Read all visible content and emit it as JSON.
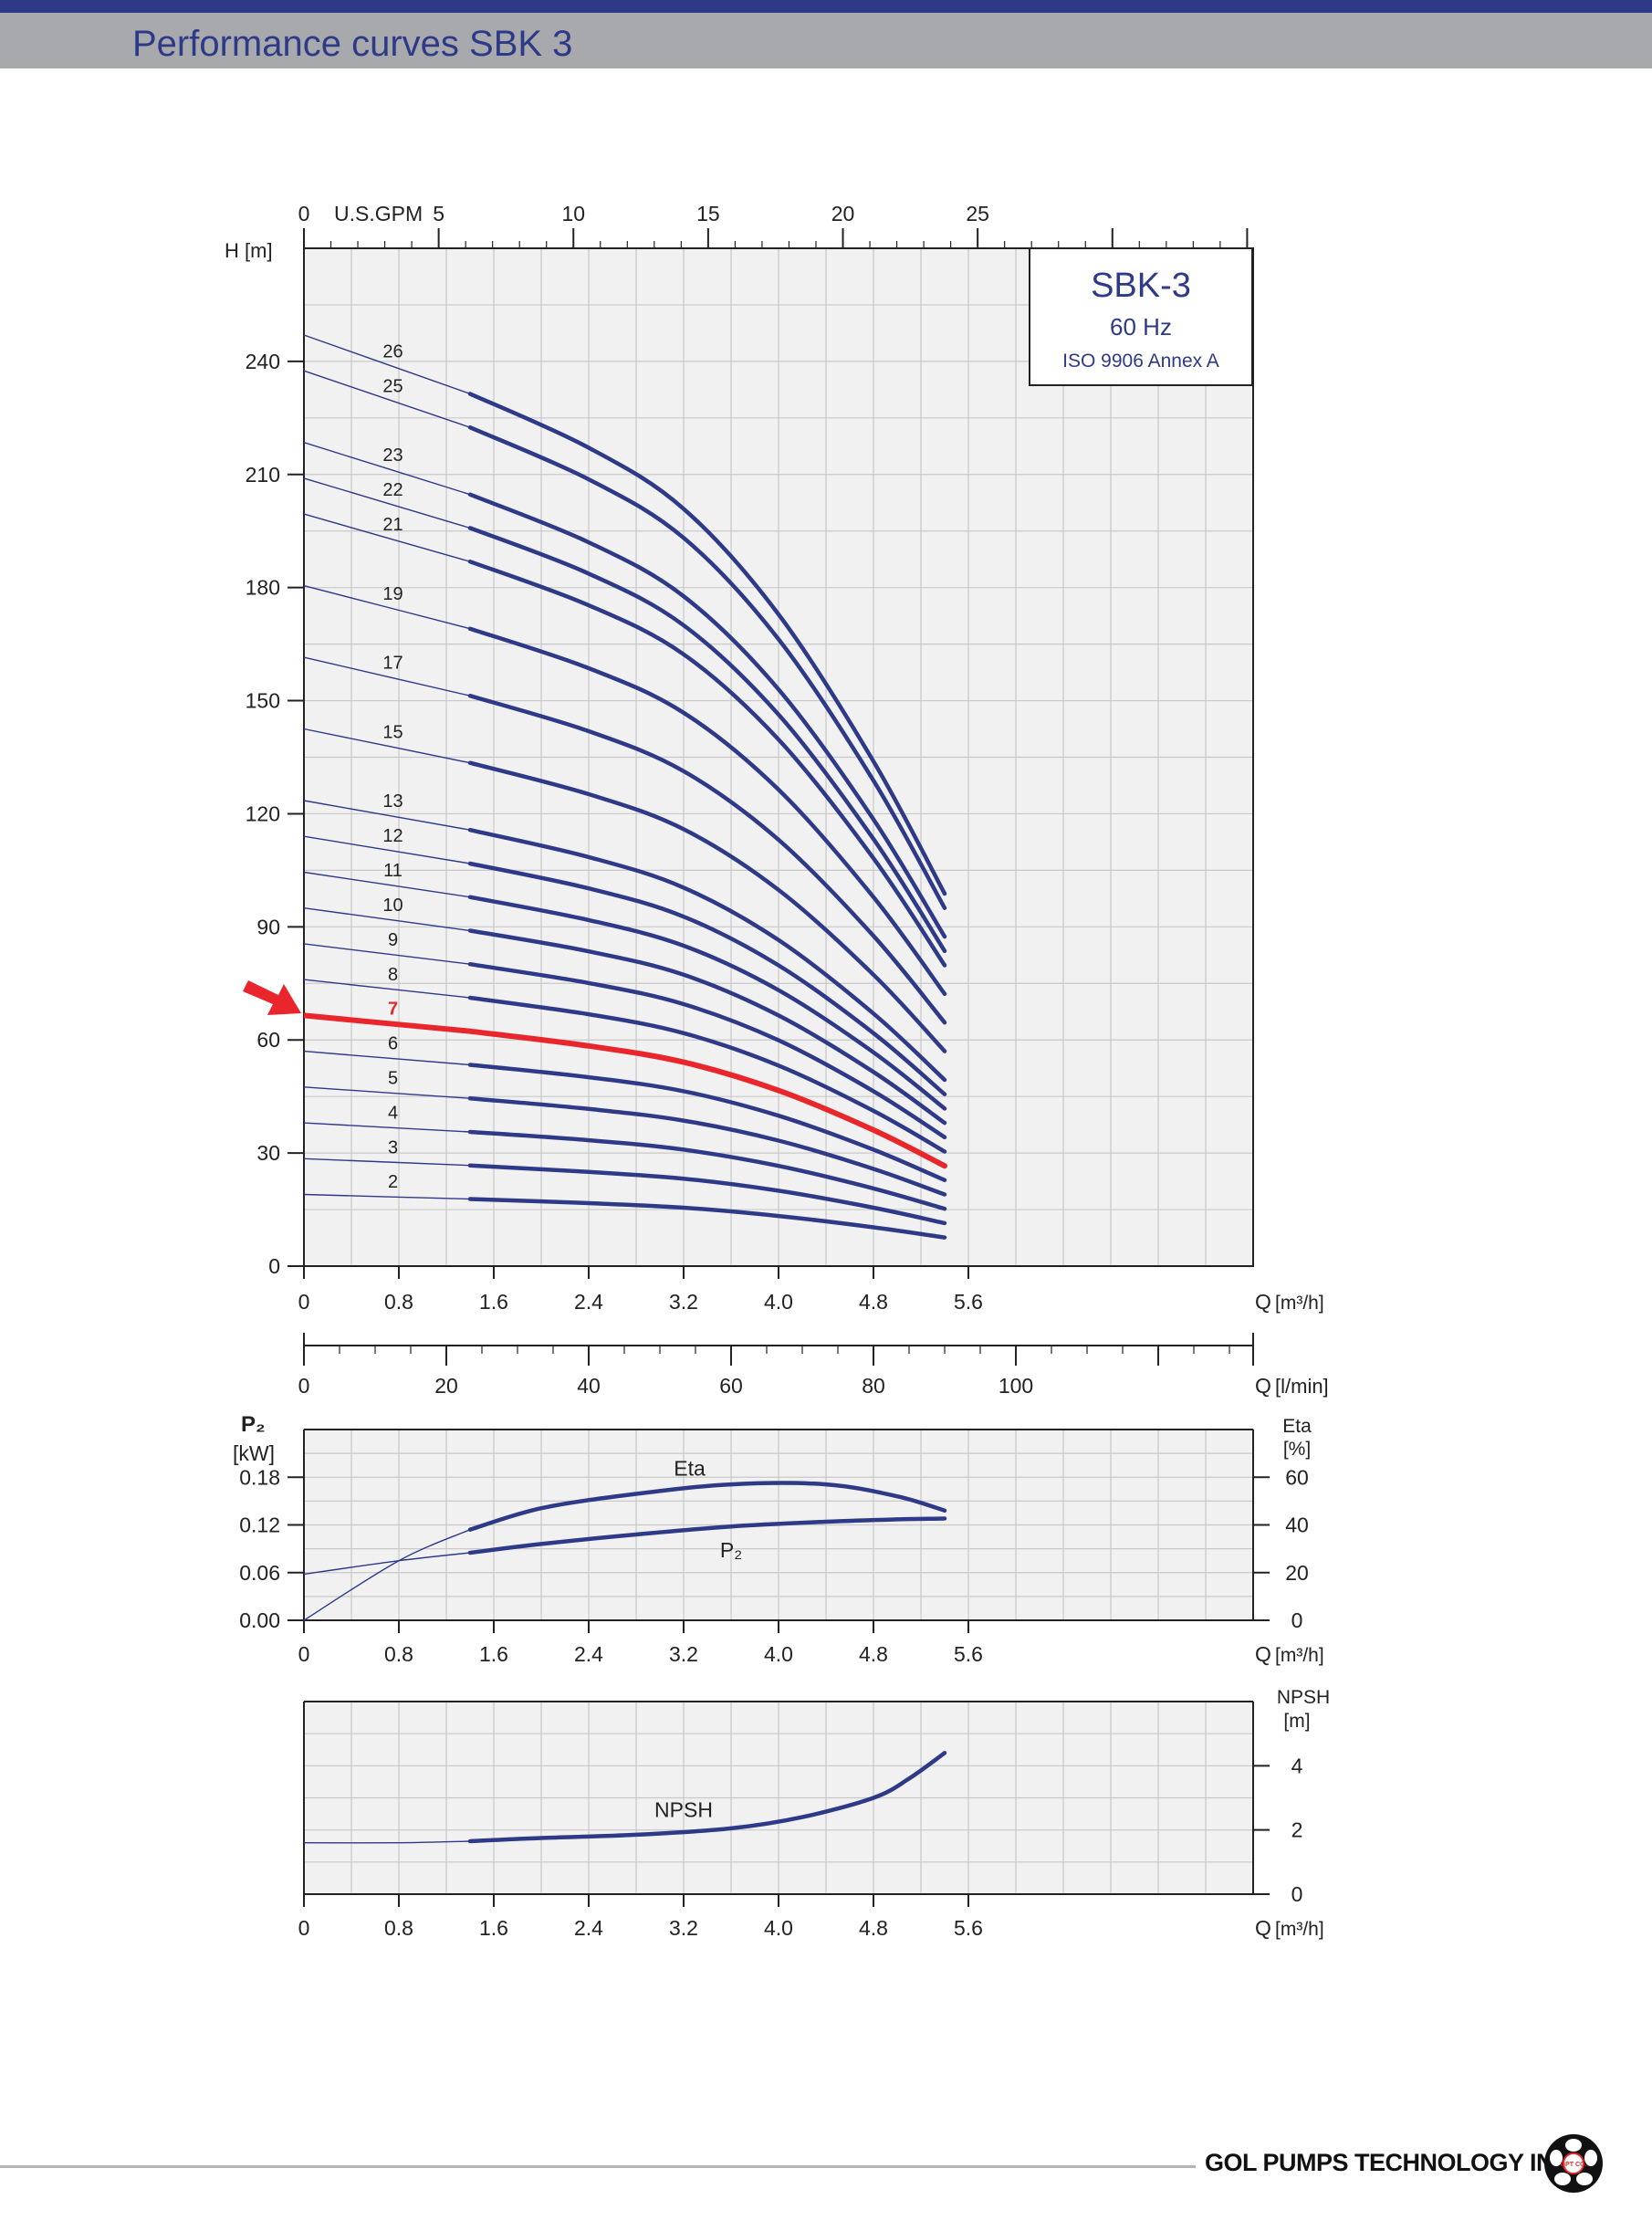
{
  "page": {
    "title": "Performance curves SBK 3",
    "company": "GOL PUMPS TECHNOLOGY INC",
    "logo_text": "GPT CO."
  },
  "colors": {
    "curve": "#2e3a87",
    "highlight": "#e8262b",
    "grid": "#c9c9c9",
    "plot_bg": "#f1f1f2",
    "header_bar": "#a7a9ac",
    "header_rule": "#2e3a87"
  },
  "legend_box": {
    "model": "SBK-3",
    "frequency": "60 Hz",
    "standard": "ISO 9906 Annex A"
  },
  "chart_data": [
    {
      "type": "line",
      "name": "head",
      "ylabel": "H [m]",
      "xlabel": "Q [m³/h]",
      "x_units_label": "Q",
      "x_units": "[m³/h]",
      "xlim": [
        0,
        8.0
      ],
      "ylim": [
        0,
        270
      ],
      "x_ticks": [
        0,
        0.8,
        1.6,
        2.4,
        3.2,
        4.0,
        4.8,
        5.6
      ],
      "y_ticks": [
        0,
        30,
        60,
        90,
        120,
        150,
        180,
        210,
        240
      ],
      "x_tick_labels": [
        "0",
        "0.8",
        "1.6",
        "2.4",
        "3.2",
        "4.0",
        "4.8",
        "5.6"
      ],
      "y_tick_labels": [
        "0",
        "30",
        "60",
        "90",
        "120",
        "150",
        "180",
        "210",
        "240"
      ],
      "grid": true,
      "top_axis": {
        "label": "U.S.GPM",
        "ticks": [
          0,
          5,
          10,
          15,
          20,
          25
        ],
        "tick_labels": [
          "0",
          "5",
          "10",
          "15",
          "20",
          "25"
        ],
        "gpm_per_m3h": 4.4029
      },
      "x_operating": [
        1.4,
        5.4
      ],
      "highlight_stage": "7",
      "series": [
        {
          "name": "2",
          "x": [
            0,
            1.4,
            2.4,
            3.2,
            4.0,
            4.8,
            5.4
          ],
          "y": [
            19.0,
            17.8,
            16.7,
            15.5,
            13.3,
            10.3,
            7.6
          ]
        },
        {
          "name": "3",
          "x": [
            0,
            1.4,
            2.4,
            3.2,
            4.0,
            4.8,
            5.4
          ],
          "y": [
            28.5,
            26.7,
            25.0,
            23.2,
            20.0,
            15.5,
            11.4
          ]
        },
        {
          "name": "4",
          "x": [
            0,
            1.4,
            2.4,
            3.2,
            4.0,
            4.8,
            5.4
          ],
          "y": [
            38.0,
            35.6,
            33.4,
            30.9,
            26.6,
            20.6,
            15.2
          ]
        },
        {
          "name": "5",
          "x": [
            0,
            1.4,
            2.4,
            3.2,
            4.0,
            4.8,
            5.4
          ],
          "y": [
            47.5,
            44.5,
            41.7,
            38.6,
            33.3,
            25.8,
            19.0
          ]
        },
        {
          "name": "6",
          "x": [
            0,
            1.4,
            2.4,
            3.2,
            4.0,
            4.8,
            5.4
          ],
          "y": [
            57.0,
            53.4,
            50.1,
            46.4,
            39.9,
            30.9,
            22.8
          ]
        },
        {
          "name": "7",
          "x": [
            0,
            1.4,
            2.4,
            3.2,
            4.0,
            4.8,
            5.4
          ],
          "y": [
            66.5,
            62.3,
            58.4,
            54.1,
            46.6,
            36.1,
            26.6
          ]
        },
        {
          "name": "8",
          "x": [
            0,
            1.4,
            2.4,
            3.2,
            4.0,
            4.8,
            5.4
          ],
          "y": [
            76.0,
            71.2,
            66.8,
            61.8,
            53.2,
            41.2,
            30.4
          ]
        },
        {
          "name": "9",
          "x": [
            0,
            1.4,
            2.4,
            3.2,
            4.0,
            4.8,
            5.4
          ],
          "y": [
            85.5,
            80.1,
            75.1,
            69.5,
            59.9,
            46.4,
            34.2
          ]
        },
        {
          "name": "10",
          "x": [
            0,
            1.4,
            2.4,
            3.2,
            4.0,
            4.8,
            5.4
          ],
          "y": [
            95.0,
            89.0,
            83.5,
            77.3,
            66.5,
            51.5,
            38.0
          ]
        },
        {
          "name": "11",
          "x": [
            0,
            1.4,
            2.4,
            3.2,
            4.0,
            4.8,
            5.4
          ],
          "y": [
            104.5,
            97.9,
            91.8,
            85.0,
            73.2,
            56.7,
            41.8
          ]
        },
        {
          "name": "12",
          "x": [
            0,
            1.4,
            2.4,
            3.2,
            4.0,
            4.8,
            5.4
          ],
          "y": [
            114.0,
            106.8,
            100.2,
            92.7,
            79.8,
            61.8,
            45.6
          ]
        },
        {
          "name": "13",
          "x": [
            0,
            1.4,
            2.4,
            3.2,
            4.0,
            4.8,
            5.4
          ],
          "y": [
            123.5,
            115.7,
            108.5,
            100.4,
            86.5,
            67.0,
            49.4
          ]
        },
        {
          "name": "15",
          "x": [
            0,
            1.4,
            2.4,
            3.2,
            4.0,
            4.8,
            5.4
          ],
          "y": [
            142.5,
            133.5,
            125.2,
            115.9,
            99.8,
            77.3,
            57.0
          ]
        },
        {
          "name": "17",
          "x": [
            0,
            1.4,
            2.4,
            3.2,
            4.0,
            4.8,
            5.4
          ],
          "y": [
            161.5,
            151.3,
            141.9,
            131.3,
            113.1,
            87.6,
            64.6
          ]
        },
        {
          "name": "19",
          "x": [
            0,
            1.4,
            2.4,
            3.2,
            4.0,
            4.8,
            5.4
          ],
          "y": [
            180.5,
            169.1,
            158.6,
            146.8,
            126.4,
            97.9,
            72.2
          ]
        },
        {
          "name": "21",
          "x": [
            0,
            1.4,
            2.4,
            3.2,
            4.0,
            4.8,
            5.4
          ],
          "y": [
            199.5,
            186.9,
            175.3,
            162.3,
            139.7,
            108.2,
            79.8
          ]
        },
        {
          "name": "22",
          "x": [
            0,
            1.4,
            2.4,
            3.2,
            4.0,
            4.8,
            5.4
          ],
          "y": [
            209.0,
            195.8,
            183.7,
            170.0,
            146.3,
            113.3,
            83.6
          ]
        },
        {
          "name": "23",
          "x": [
            0,
            1.4,
            2.4,
            3.2,
            4.0,
            4.8,
            5.4
          ],
          "y": [
            218.5,
            204.7,
            192.0,
            177.7,
            153.0,
            118.5,
            87.4
          ]
        },
        {
          "name": "25",
          "x": [
            0,
            1.4,
            2.4,
            3.2,
            4.0,
            4.8,
            5.4
          ],
          "y": [
            237.5,
            222.5,
            208.7,
            193.2,
            166.3,
            128.8,
            95.0
          ]
        },
        {
          "name": "26",
          "x": [
            0,
            1.4,
            2.4,
            3.2,
            4.0,
            4.8,
            5.4
          ],
          "y": [
            247.0,
            231.4,
            217.1,
            200.9,
            172.9,
            133.9,
            98.8
          ]
        }
      ]
    },
    {
      "type": "line",
      "name": "flow-lmin-axis",
      "xlabel": "Q [l/min]",
      "x_units_label": "Q",
      "x_units": "[l/min]",
      "xlim": [
        0,
        133.33
      ],
      "x_ticks": [
        0,
        20,
        40,
        60,
        80,
        100
      ],
      "x_tick_labels": [
        "0",
        "20",
        "40",
        "60",
        "80",
        "100"
      ]
    },
    {
      "type": "line",
      "name": "power-efficiency",
      "ylabel": "P₂ [kW]",
      "y_title": "P₂",
      "y_units": "[kW]",
      "y2label": "Eta [%]",
      "y2_title": "Eta",
      "y2_units": "[%]",
      "xlabel": "Q [m³/h]",
      "x_units_label": "Q",
      "x_units": "[m³/h]",
      "xlim": [
        0,
        8.0
      ],
      "ylim": [
        0,
        0.24
      ],
      "y2lim": [
        0,
        80
      ],
      "x_ticks": [
        0,
        0.8,
        1.6,
        2.4,
        3.2,
        4.0,
        4.8,
        5.6
      ],
      "x_tick_labels": [
        "0",
        "0.8",
        "1.6",
        "2.4",
        "3.2",
        "4.0",
        "4.8",
        "5.6"
      ],
      "y_ticks": [
        0,
        0.06,
        0.12,
        0.18
      ],
      "y_tick_labels": [
        "0.00",
        "0.06",
        "0.12",
        "0.18"
      ],
      "y2_ticks": [
        0,
        20,
        40,
        60
      ],
      "y2_tick_labels": [
        "0",
        "20",
        "40",
        "60"
      ],
      "grid": true,
      "x_operating": [
        1.4,
        5.4
      ],
      "series": [
        {
          "name": "Eta",
          "label": "Eta",
          "axis": "y2",
          "x": [
            0,
            0.8,
            1.4,
            2.0,
            2.8,
            3.6,
            4.4,
            5.0,
            5.4
          ],
          "y": [
            0,
            25,
            38,
            47,
            53,
            57,
            57,
            52,
            46
          ]
        },
        {
          "name": "P₂",
          "label": "P₂",
          "axis": "y",
          "x": [
            0,
            0.8,
            1.4,
            2.0,
            2.8,
            3.6,
            4.4,
            5.0,
            5.4
          ],
          "y": [
            0.058,
            0.075,
            0.085,
            0.096,
            0.108,
            0.118,
            0.124,
            0.127,
            0.128
          ]
        }
      ]
    },
    {
      "type": "line",
      "name": "npsh",
      "y2label": "NPSH [m]",
      "y2_title": "NPSH",
      "y2_units": "[m]",
      "xlabel": "Q [m³/h]",
      "x_units_label": "Q",
      "x_units": "[m³/h]",
      "xlim": [
        0,
        8.0
      ],
      "y2lim": [
        0,
        6
      ],
      "x_ticks": [
        0,
        0.8,
        1.6,
        2.4,
        3.2,
        4.0,
        4.8,
        5.6
      ],
      "x_tick_labels": [
        "0",
        "0.8",
        "1.6",
        "2.4",
        "3.2",
        "4.0",
        "4.8",
        "5.6"
      ],
      "y2_ticks": [
        0,
        2,
        4
      ],
      "y2_tick_labels": [
        "0",
        "2",
        "4"
      ],
      "grid": true,
      "x_operating": [
        1.4,
        5.4
      ],
      "series": [
        {
          "name": "NPSH",
          "label": "NPSH",
          "x": [
            0,
            0.8,
            1.4,
            2.0,
            2.8,
            3.6,
            4.2,
            4.8,
            5.1,
            5.4
          ],
          "y": [
            1.6,
            1.6,
            1.65,
            1.75,
            1.85,
            2.05,
            2.4,
            3.0,
            3.6,
            4.4
          ]
        }
      ]
    }
  ]
}
